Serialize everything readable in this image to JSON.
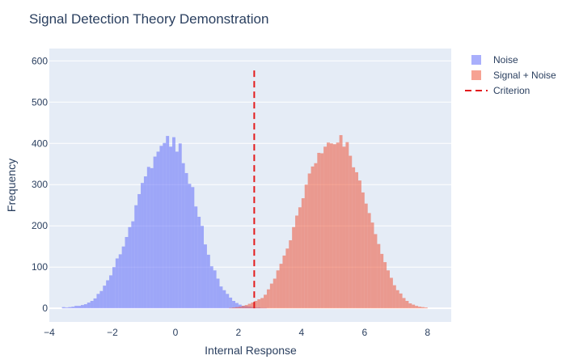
{
  "chart_data": {
    "type": "bar",
    "title": "Signal Detection Theory Demonstration",
    "xlabel": "Internal Response",
    "ylabel": "Frequency",
    "xlim": [
      -4,
      8.75
    ],
    "ylim": [
      -33,
      630
    ],
    "x_ticks": [
      -4,
      -2,
      0,
      2,
      4,
      6,
      8
    ],
    "y_ticks": [
      0,
      100,
      200,
      300,
      400,
      500,
      600
    ],
    "x_tick_labels": [
      "−4",
      "−2",
      "0",
      "2",
      "4",
      "6",
      "8"
    ],
    "y_tick_labels": [
      "0",
      "100",
      "200",
      "300",
      "400",
      "500",
      "600"
    ],
    "grid": true,
    "legend_position": "top-right",
    "bin_width": 0.1,
    "series": [
      {
        "name": "Noise",
        "color": "#636efa",
        "opacity": 0.55,
        "bin_start": -3.6,
        "values": [
          3,
          2,
          3,
          4,
          6,
          6,
          8,
          10,
          14,
          18,
          24,
          35,
          42,
          55,
          68,
          80,
          100,
          121,
          131,
          150,
          173,
          197,
          211,
          250,
          277,
          304,
          320,
          343,
          340,
          368,
          380,
          394,
          401,
          418,
          392,
          415,
          380,
          400,
          352,
          328,
          302,
          294,
          247,
          222,
          200,
          155,
          130,
          102,
          92,
          72,
          53,
          44,
          35,
          26,
          18,
          13,
          9,
          6,
          5,
          4,
          3,
          2,
          2,
          1,
          1
        ]
      },
      {
        "name": "Signal + Noise",
        "color": "#ef553b",
        "opacity": 0.55,
        "bin_start": 1.7,
        "values": [
          1,
          2,
          3,
          4,
          6,
          8,
          11,
          14,
          18,
          22,
          25,
          33,
          46,
          60,
          72,
          92,
          108,
          128,
          145,
          165,
          197,
          225,
          245,
          267,
          300,
          327,
          344,
          352,
          377,
          376,
          392,
          402,
          400,
          398,
          402,
          420,
          392,
          403,
          370,
          342,
          330,
          310,
          281,
          254,
          231,
          208,
          180,
          156,
          132,
          112,
          92,
          74,
          56,
          44,
          36,
          25,
          18,
          12,
          9,
          6,
          4,
          3,
          2
        ]
      }
    ],
    "criterion": {
      "name": "Criterion",
      "x": 2.5,
      "y_range": [
        0,
        585
      ],
      "color": "#e31a1c",
      "dash": "dashed"
    }
  }
}
